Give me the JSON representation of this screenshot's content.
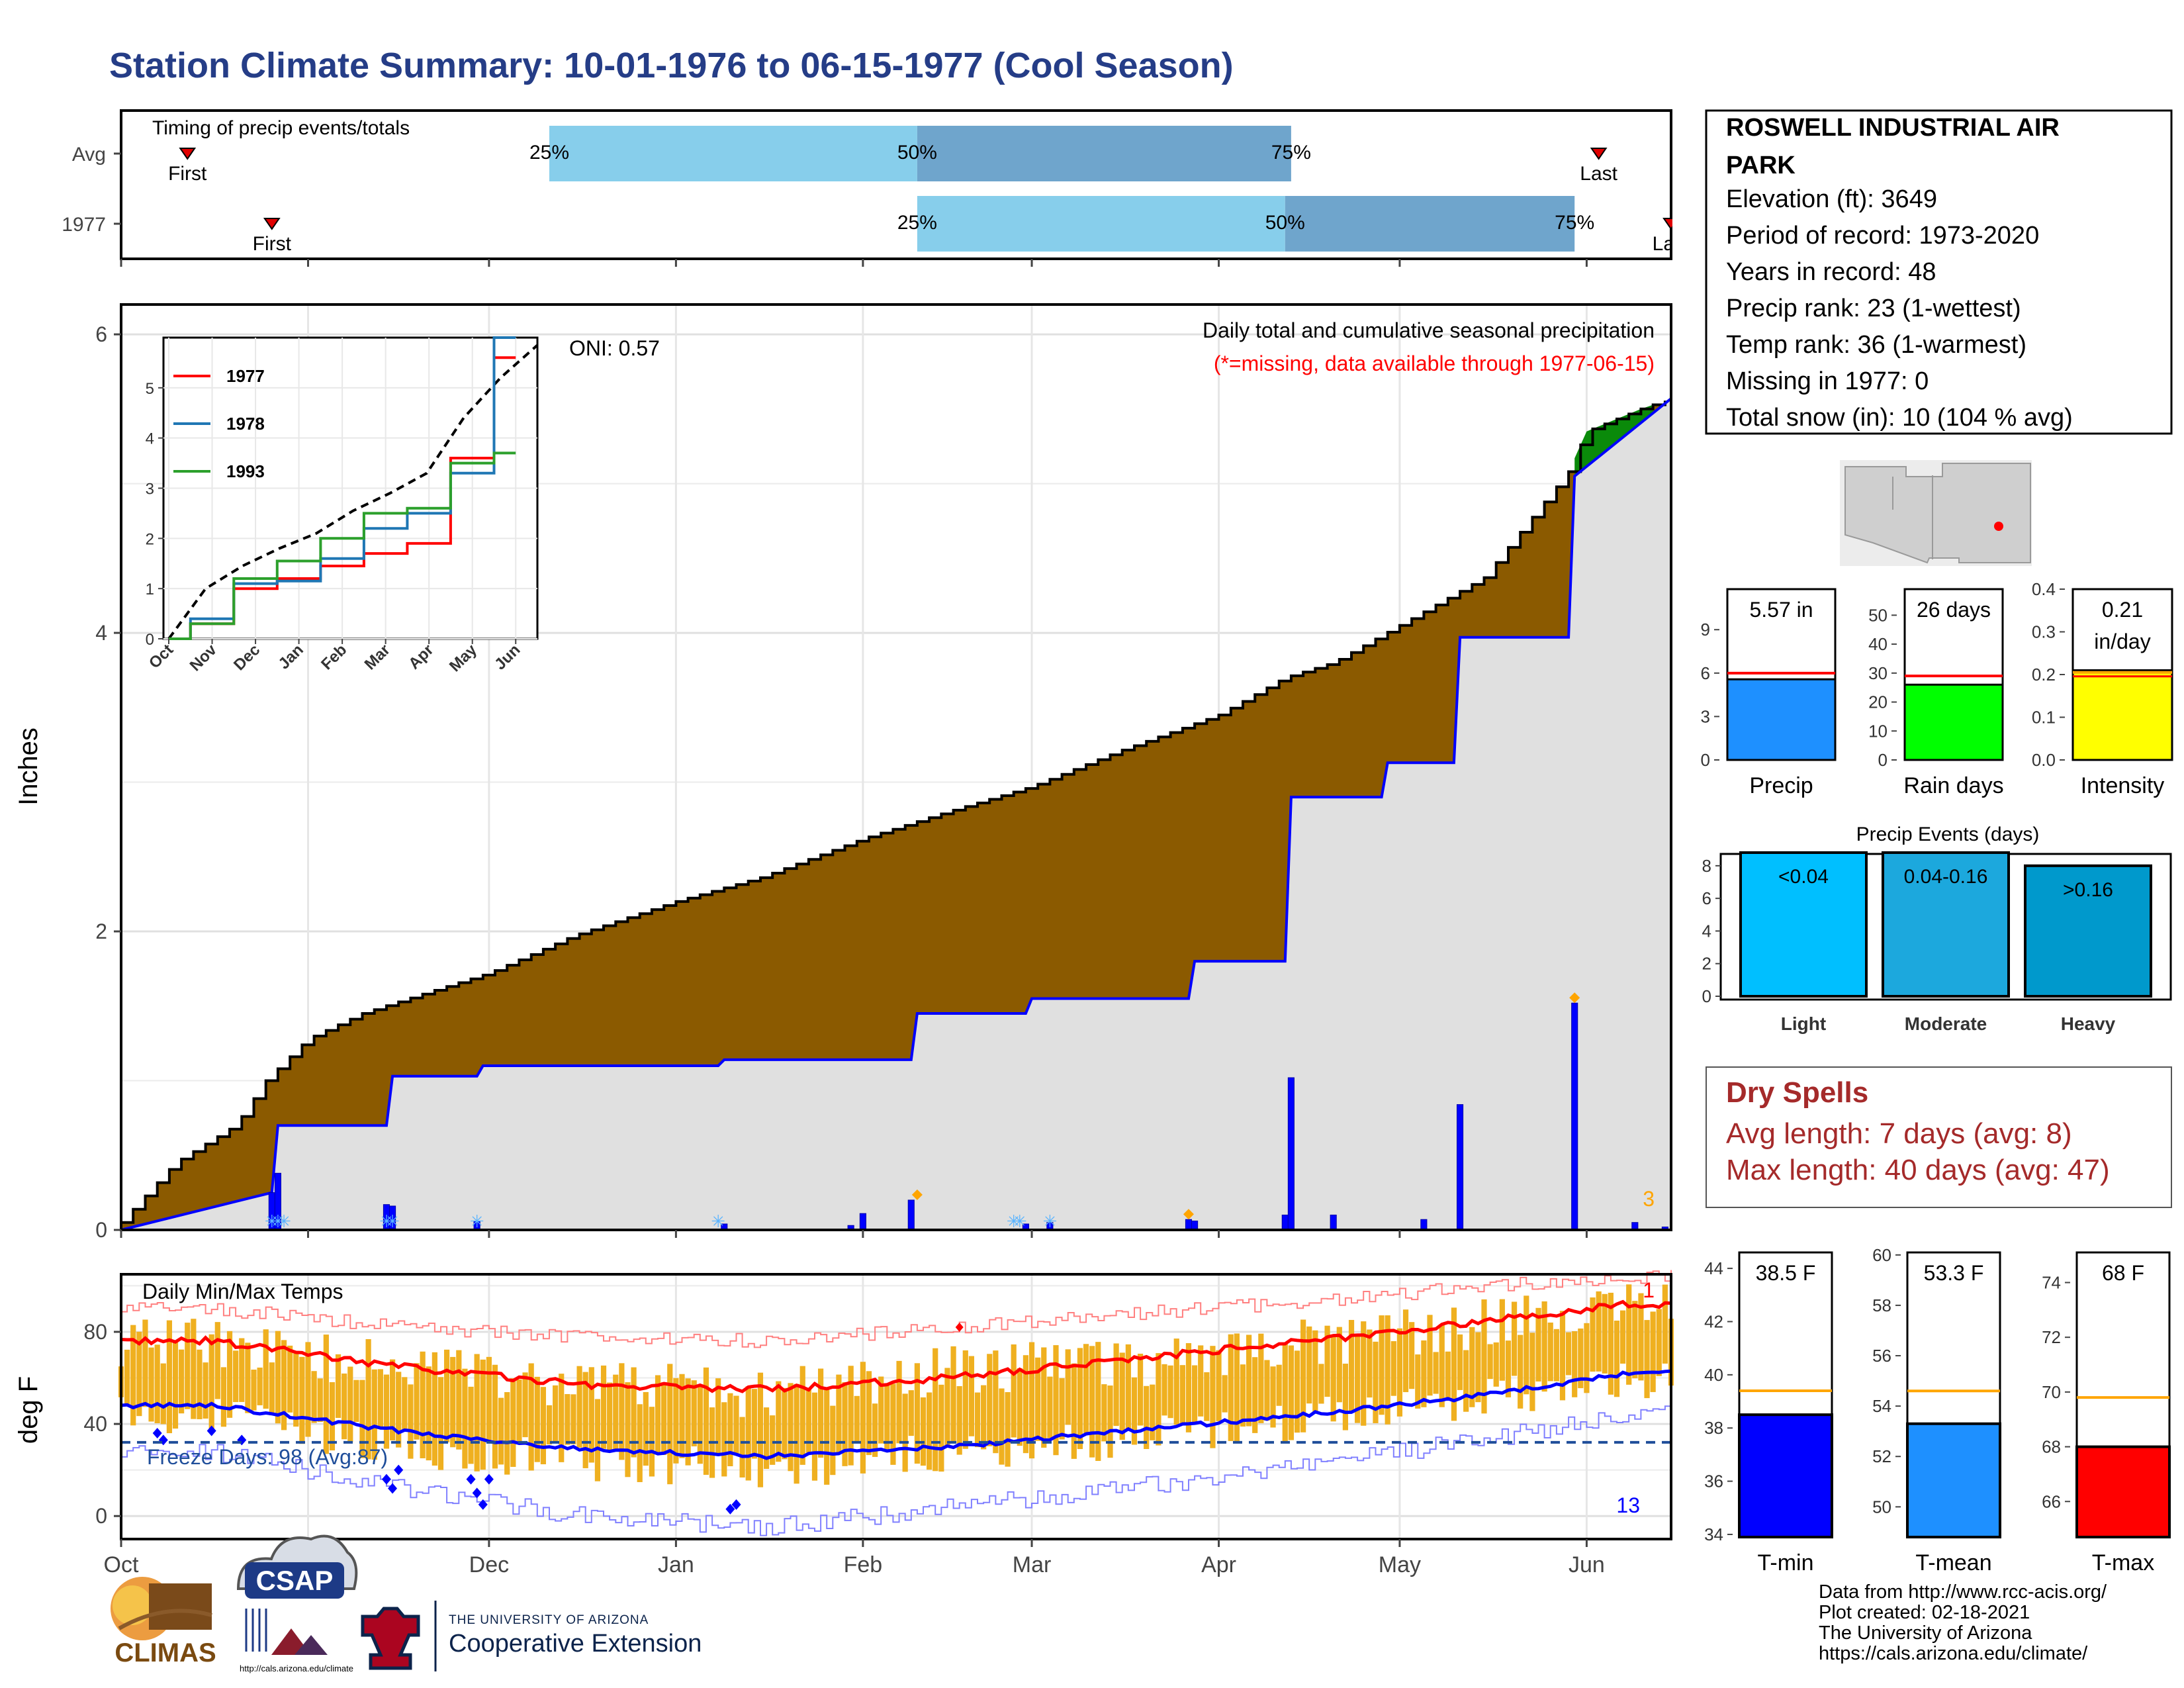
{
  "title": "Station Climate Summary: 10-01-1976 to 06-15-1977 (Cool Season)",
  "colors": {
    "title": "#253d87",
    "cumulative_fill": "#8b5a00",
    "above_avg_fill": "#0a8a0a",
    "normal_fill": "#e0e0e0",
    "normal_line": "#0000ff",
    "precip_bar": "#0000ff",
    "temp_bar": "#efb020",
    "tmax_line": "#ff0000",
    "tmin_line": "#0000ff",
    "freeze_line": "#1f4e9a",
    "dry_spell_text": "#a52a2a",
    "timing_light": "#87ceeb",
    "timing_dark": "#6fa5cc",
    "precip_box": "#1e90ff",
    "raindays_box": "#00ff00",
    "intensity_box": "#ffff00",
    "light_box": "#00bfff",
    "moderate_box": "#1ca8dd",
    "heavy_box": "#0099cc",
    "tmin_box": "#0000ff",
    "tmean_box": "#1e90ff",
    "tmax_box": "#ff0000"
  },
  "timing": {
    "title": "Timing of precip events/totals",
    "rows": [
      {
        "label": "Avg",
        "first_label": "First",
        "last_label": "Last",
        "q25": "25%",
        "q50": "50%",
        "q75": "75%",
        "first": "1976-10-12",
        "p25": "1976-12-11",
        "p50": "1977-02-10",
        "p75": "1977-04-13",
        "last": "1977-06-03"
      },
      {
        "label": "1977",
        "first_label": "First",
        "last_label": "Last",
        "q25": "25%",
        "q50": "50%",
        "q75": "75%",
        "first": "1976-10-26",
        "p25": "1977-02-10",
        "p50": "1977-04-12",
        "p75": "1977-05-30",
        "last": "1977-06-15"
      }
    ]
  },
  "precip_panel": {
    "ylabel": "Inches",
    "oni": "ONI: 0.57",
    "header": "Daily total and cumulative seasonal precipitation",
    "missing_note": "(*=missing, data available through 1977-06-15)",
    "corner_count": "3",
    "inset": {
      "series": [
        {
          "name": "1977",
          "color": "#ff0000"
        },
        {
          "name": "1978",
          "color": "#1f77b4"
        },
        {
          "name": "1993",
          "color": "#2ca02c"
        }
      ],
      "xticks": [
        "Oct",
        "Nov",
        "Dec",
        "Jan",
        "Feb",
        "Mar",
        "Apr",
        "May",
        "Jun"
      ],
      "yticks": [
        "0",
        "1",
        "2",
        "3",
        "4",
        "5"
      ]
    }
  },
  "temp_panel": {
    "ylabel": "deg F",
    "title": "Daily Min/Max Temps",
    "freeze_label": "Freeze Days: 98 (Avg:87)",
    "top_count": "1",
    "bottom_count": "13"
  },
  "x_months": [
    "Oct",
    "Nov",
    "Dec",
    "Jan",
    "Feb",
    "Mar",
    "Apr",
    "May",
    "Jun"
  ],
  "station": {
    "name_line1": "ROSWELL INDUSTRIAL AIR",
    "name_line2": "PARK",
    "elevation": "Elevation (ft): 3649",
    "period": "Period of record: 1973-2020",
    "years": "Years in record: 48",
    "precip_rank": "Precip rank: 23 (1-wettest)",
    "temp_rank": "Temp rank: 36 (1-warmest)",
    "missing": "Missing in 1977: 0",
    "snow": "Total snow (in): 10 (104 % avg)"
  },
  "summary_bars": [
    {
      "label": "Precip",
      "value_label": "5.57 in",
      "sub_label": "",
      "value": 5.57,
      "avg": 6.0,
      "ymax": 11.8,
      "ticks": [
        "0",
        "3",
        "6",
        "9"
      ]
    },
    {
      "label": "Rain days",
      "value_label": "26 days",
      "sub_label": "",
      "value": 26,
      "avg": 29,
      "ymax": 59,
      "ticks": [
        "0",
        "10",
        "20",
        "30",
        "40",
        "50"
      ]
    },
    {
      "label": "Intensity",
      "value_label": "0.21",
      "sub_label": "in/day",
      "value": 0.21,
      "avg": 0.205,
      "ymax": 0.4,
      "ticks": [
        "0.0",
        "0.1",
        "0.2",
        "0.3",
        "0.4"
      ]
    }
  ],
  "events": {
    "title": "Precip Events (days)",
    "bars": [
      {
        "label": "Light",
        "range": "<0.04",
        "value": 9
      },
      {
        "label": "Moderate",
        "range": "0.04-0.16",
        "value": 9
      },
      {
        "label": "Heavy",
        "range": ">0.16",
        "value": 8
      }
    ],
    "ticks": [
      "0",
      "2",
      "4",
      "6",
      "8"
    ]
  },
  "dry_spells": {
    "title": "Dry Spells",
    "avg_length": "Avg length: 7 days (avg: 8)",
    "max_length": "Max length: 40 days (avg: 47)"
  },
  "temp_bars": [
    {
      "label": "T-min",
      "value_label": "38.5 F",
      "value": 38.5,
      "avg": 39.4,
      "ymin": 33.9,
      "ymax": 44.6,
      "ticks": [
        "34",
        "36",
        "38",
        "40",
        "42",
        "44"
      ]
    },
    {
      "label": "T-mean",
      "value_label": "53.3 F",
      "value": 53.3,
      "avg": 54.6,
      "ymin": 48.8,
      "ymax": 60.1,
      "ticks": [
        "50",
        "52",
        "54",
        "56",
        "58",
        "60"
      ]
    },
    {
      "label": "T-max",
      "value_label": "68 F",
      "value": 68.0,
      "avg": 69.8,
      "ymin": 64.7,
      "ymax": 75.1,
      "ticks": [
        "66",
        "68",
        "70",
        "72",
        "74"
      ]
    }
  ],
  "logos": {
    "climas": "CLIMAS",
    "csap": "CSAP",
    "csap_url": "http://cals.arizona.edu/climate",
    "ua_line1": "THE UNIVERSITY OF ARIZONA",
    "ua_line2": "Cooperative Extension"
  },
  "credits": {
    "line1": "Data from http://www.rcc-acis.org/",
    "line2": "Plot created: 02-18-2021",
    "line3": "The University of Arizona",
    "line4": "https://cals.arizona.edu/climate/"
  },
  "chart_data": [
    {
      "type": "area",
      "title": "Daily total and cumulative seasonal precipitation",
      "ylabel": "Inches",
      "ylim": [
        0,
        6.2
      ],
      "x_range": [
        "1976-10-01",
        "1977-06-15"
      ],
      "grid": true,
      "cumulative_1977": {
        "dates": [
          "1976-10-01",
          "1976-10-10",
          "1976-10-20",
          "1976-10-25",
          "1976-11-01",
          "1976-11-10",
          "1976-11-20",
          "1976-12-01",
          "1976-12-15",
          "1977-01-01",
          "1977-01-15",
          "1977-02-01",
          "1977-02-15",
          "1977-03-01",
          "1977-03-15",
          "1977-04-01",
          "1977-04-12",
          "1977-04-20",
          "1977-05-01",
          "1977-05-15",
          "1977-05-29",
          "1977-06-01",
          "1977-06-10",
          "1977-06-15"
        ],
        "values": [
          0.05,
          0.45,
          0.7,
          1.0,
          1.28,
          1.45,
          1.58,
          1.72,
          1.97,
          2.2,
          2.36,
          2.62,
          2.8,
          2.97,
          3.2,
          3.45,
          3.7,
          3.8,
          4.05,
          4.37,
          5.08,
          5.35,
          5.5,
          5.57
        ]
      },
      "normal_cumulative": {
        "dates": [
          "1976-10-01",
          "1976-10-26",
          "1976-10-27",
          "1976-11-14",
          "1976-11-15",
          "1976-11-29",
          "1976-11-30",
          "1977-01-08",
          "1977-01-09",
          "1977-02-09",
          "1977-02-10",
          "1977-02-28",
          "1977-03-01",
          "1977-03-27",
          "1977-03-28",
          "1977-04-12",
          "1977-04-13",
          "1977-04-28",
          "1977-04-29",
          "1977-05-10",
          "1977-05-11",
          "1977-05-29",
          "1977-05-30",
          "1977-06-15"
        ],
        "values": [
          0.0,
          0.25,
          0.7,
          0.7,
          1.03,
          1.03,
          1.1,
          1.1,
          1.14,
          1.14,
          1.45,
          1.45,
          1.55,
          1.55,
          1.8,
          1.8,
          2.9,
          2.9,
          3.13,
          3.13,
          3.97,
          3.97,
          5.05,
          5.57
        ]
      },
      "daily_precip": {
        "dates": [
          "1976-10-26",
          "1976-10-27",
          "1976-11-14",
          "1976-11-15",
          "1976-11-29",
          "1977-01-09",
          "1977-01-30",
          "1977-02-01",
          "1977-02-09",
          "1977-02-28",
          "1977-03-04",
          "1977-03-27",
          "1977-03-28",
          "1977-04-12",
          "1977-04-13",
          "1977-04-20",
          "1977-05-05",
          "1977-05-11",
          "1977-05-30",
          "1977-06-09",
          "1977-06-14"
        ],
        "values": [
          0.25,
          0.38,
          0.17,
          0.16,
          0.06,
          0.04,
          0.03,
          0.11,
          0.2,
          0.04,
          0.05,
          0.07,
          0.06,
          0.1,
          1.02,
          0.1,
          0.07,
          0.84,
          1.52,
          0.05,
          0.02
        ]
      }
    },
    {
      "type": "line",
      "title": "",
      "x": [
        "Oct",
        "Nov",
        "Dec",
        "Jan",
        "Feb",
        "Mar",
        "Apr",
        "May",
        "Jun"
      ],
      "ylim": [
        0,
        6
      ],
      "series": [
        {
          "name": "1977",
          "values": [
            0.0,
            0.3,
            1.0,
            1.2,
            1.45,
            1.7,
            1.9,
            3.6,
            5.6
          ]
        },
        {
          "name": "1978",
          "values": [
            0.0,
            0.4,
            1.1,
            1.15,
            1.6,
            2.2,
            2.5,
            3.3,
            6.0
          ]
        },
        {
          "name": "1993",
          "values": [
            0.0,
            0.3,
            1.2,
            1.55,
            2.0,
            2.5,
            2.6,
            3.5,
            3.7
          ]
        }
      ]
    },
    {
      "type": "bar",
      "title": "Daily Min/Max Temps",
      "ylabel": "deg F",
      "ylim": [
        -10,
        100
      ],
      "grid": true,
      "freeze_threshold": 32,
      "monthly": {
        "months": [
          "Oct",
          "Nov",
          "Dec",
          "Jan",
          "Feb",
          "Mar",
          "Apr",
          "May",
          "Jun"
        ],
        "tmax": [
          76,
          64,
          58,
          52,
          64,
          66,
          75,
          84,
          90
        ],
        "tmin": [
          44,
          30,
          24,
          20,
          28,
          33,
          42,
          52,
          60
        ],
        "normal_tmax": [
          76,
          65,
          57,
          55,
          60,
          68,
          76,
          85,
          92
        ],
        "normal_tmin": [
          48,
          37,
          29,
          26,
          30,
          37,
          44,
          53,
          62
        ],
        "record_tmax": [
          90,
          82,
          78,
          76,
          82,
          88,
          93,
          100,
          104
        ],
        "record_tmin": [
          28,
          12,
          0,
          -5,
          4,
          12,
          22,
          34,
          44
        ]
      }
    }
  ]
}
